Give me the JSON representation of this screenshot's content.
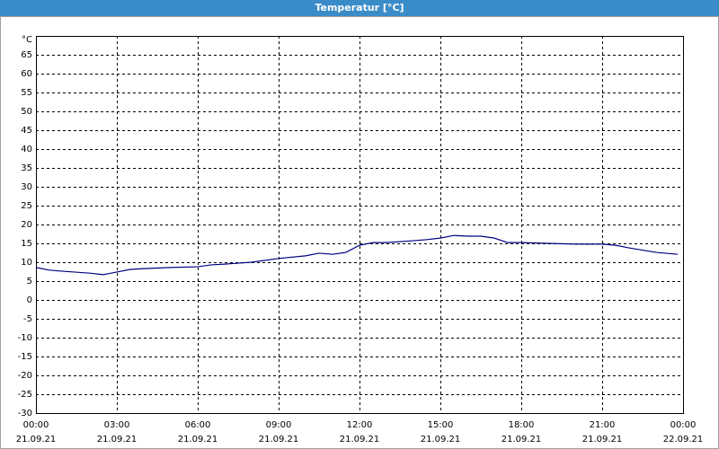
{
  "chart_data": {
    "type": "line",
    "title": "Temperatur [°C]",
    "x": [
      0,
      0.5,
      1,
      2,
      2.5,
      3,
      3.5,
      4,
      5,
      6,
      6.5,
      7,
      8,
      9,
      10,
      10.5,
      11,
      11.5,
      12,
      12.5,
      13,
      14,
      14.5,
      15,
      15.5,
      16,
      16.5,
      17,
      17.5,
      18,
      19,
      20,
      21,
      21.5,
      22,
      23,
      23.8
    ],
    "series": [
      {
        "color": "#000080",
        "values": [
          8.6,
          7.9,
          7.6,
          7.1,
          6.7,
          7.4,
          8.1,
          8.3,
          8.6,
          8.8,
          9.3,
          9.5,
          10,
          11,
          11.7,
          12.4,
          12.1,
          12.6,
          14.5,
          15.2,
          15.2,
          15.7,
          16,
          16.4,
          17.1,
          16.9,
          16.9,
          16.4,
          15.2,
          15.2,
          15,
          14.8,
          14.8,
          14.5,
          13.8,
          12.6,
          12.1
        ]
      }
    ],
    "xlim": [
      0,
      24
    ],
    "xticks": [
      {
        "value": 0,
        "label": "00:00"
      },
      {
        "value": 3,
        "label": "03:00"
      },
      {
        "value": 6,
        "label": "06:00"
      },
      {
        "value": 9,
        "label": "09:00"
      },
      {
        "value": 12,
        "label": "12:00"
      },
      {
        "value": 15,
        "label": "15:00"
      },
      {
        "value": 18,
        "label": "18:00"
      },
      {
        "value": 21,
        "label": "21:00"
      },
      {
        "value": 24,
        "label": "00:00"
      }
    ],
    "xtick_dates": [
      "21.09.21",
      "21.09.21",
      "21.09.21",
      "21.09.21",
      "21.09.21",
      "21.09.21",
      "21.09.21",
      "21.09.21",
      "22.09.21"
    ],
    "ylim": [
      -30,
      70
    ],
    "yticks": [
      -30,
      -25,
      -20,
      -15,
      -10,
      -5,
      0,
      5,
      10,
      15,
      20,
      25,
      30,
      35,
      40,
      45,
      50,
      55,
      60,
      65,
      {
        "value": 70,
        "label": "°C"
      }
    ],
    "grid": true
  }
}
